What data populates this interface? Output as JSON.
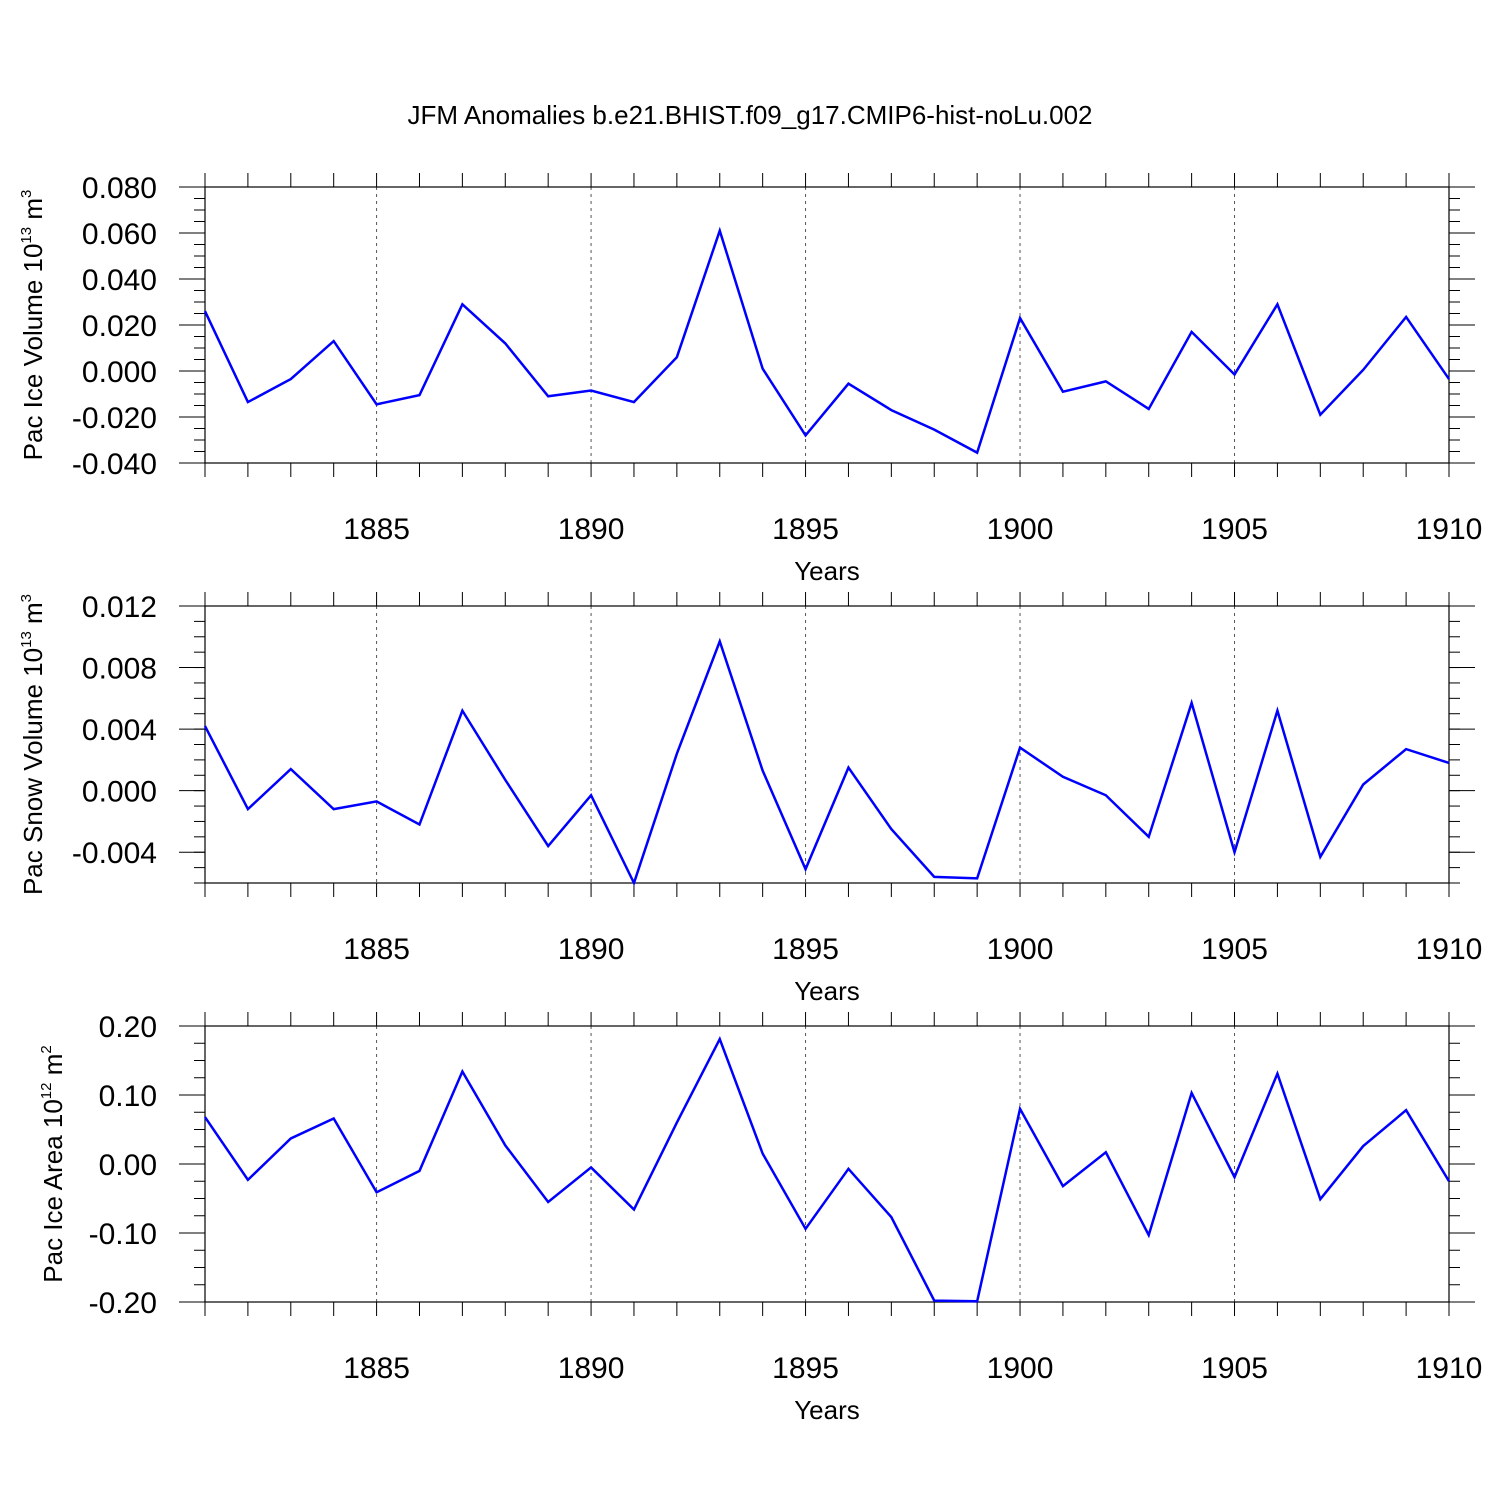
{
  "figure": {
    "title": "JFM Anomalies b.e21.BHIST.f09_g17.CMIP6-hist-noLu.002"
  },
  "chart_data": [
    {
      "type": "line",
      "title": "JFM Anomalies b.e21.BHIST.f09_g17.CMIP6-hist-noLu.002",
      "xlabel": "Years",
      "ylabel": {
        "prefix": "Pac Ice Volume 10",
        "exp": "13",
        "unit": " m",
        "unit_exp": "3"
      },
      "xlim": [
        1881,
        1910
      ],
      "ylim": [
        -0.04,
        0.08
      ],
      "xticks": [
        1885,
        1890,
        1895,
        1900,
        1905,
        1910
      ],
      "xtick_labels": [
        "1885",
        "1890",
        "1895",
        "1900",
        "1905",
        "1910"
      ],
      "yticks": [
        -0.04,
        -0.02,
        0.0,
        0.02,
        0.04,
        0.06,
        0.08
      ],
      "ytick_labels": [
        "-0.040",
        "-0.020",
        "0.000",
        "0.020",
        "0.040",
        "0.060",
        "0.080"
      ],
      "y_minor_step": 0.005,
      "grid": "vertical-dashed",
      "line_color": "#0000ff",
      "series": [
        {
          "name": "Pac Ice Volume",
          "x": [
            1881,
            1882,
            1883,
            1884,
            1885,
            1886,
            1887,
            1888,
            1889,
            1890,
            1891,
            1892,
            1893,
            1894,
            1895,
            1896,
            1897,
            1898,
            1899,
            1900,
            1901,
            1902,
            1903,
            1904,
            1905,
            1906,
            1907,
            1908,
            1909,
            1910
          ],
          "values": [
            0.026,
            -0.0135,
            -0.0035,
            0.013,
            -0.0145,
            -0.0105,
            0.029,
            0.012,
            -0.011,
            -0.0085,
            -0.0135,
            0.006,
            0.061,
            0.001,
            -0.028,
            -0.0055,
            -0.017,
            -0.0255,
            -0.0355,
            0.023,
            -0.009,
            -0.0045,
            -0.0165,
            0.017,
            -0.0015,
            0.029,
            -0.019,
            0.0005,
            0.0235,
            -0.0035
          ]
        }
      ]
    },
    {
      "type": "line",
      "xlabel": "Years",
      "ylabel": {
        "prefix": "Pac Snow Volume 10",
        "exp": "13",
        "unit": " m",
        "unit_exp": "3"
      },
      "xlim": [
        1881,
        1910
      ],
      "ylim": [
        -0.006,
        0.012
      ],
      "xticks": [
        1885,
        1890,
        1895,
        1900,
        1905,
        1910
      ],
      "xtick_labels": [
        "1885",
        "1890",
        "1895",
        "1900",
        "1905",
        "1910"
      ],
      "yticks": [
        -0.004,
        0.0,
        0.004,
        0.008,
        0.012
      ],
      "ytick_labels": [
        "-0.004",
        "0.000",
        "0.004",
        "0.008",
        "0.012"
      ],
      "y_minor_step": 0.001,
      "grid": "vertical-dashed",
      "line_color": "#0000ff",
      "series": [
        {
          "name": "Pac Snow Volume",
          "x": [
            1881,
            1882,
            1883,
            1884,
            1885,
            1886,
            1887,
            1888,
            1889,
            1890,
            1891,
            1892,
            1893,
            1894,
            1895,
            1896,
            1897,
            1898,
            1899,
            1900,
            1901,
            1902,
            1903,
            1904,
            1905,
            1906,
            1907,
            1908,
            1909,
            1910
          ],
          "values": [
            0.0042,
            -0.0012,
            0.0014,
            -0.0012,
            -0.0007,
            -0.0022,
            0.0052,
            0.0007,
            -0.0036,
            -0.0003,
            -0.006,
            0.0024,
            0.0097,
            0.0013,
            -0.0051,
            0.0015,
            -0.0025,
            -0.0056,
            -0.0057,
            0.0028,
            0.0009,
            -0.0003,
            -0.003,
            0.0057,
            -0.004,
            0.0052,
            -0.0043,
            0.0004,
            0.0027,
            0.0018
          ]
        }
      ]
    },
    {
      "type": "line",
      "xlabel": "Years",
      "ylabel": {
        "prefix": "Pac Ice Area 10",
        "exp": "12",
        "unit": " m",
        "unit_exp": "2"
      },
      "xlim": [
        1881,
        1910
      ],
      "ylim": [
        -0.2,
        0.2
      ],
      "xticks": [
        1885,
        1890,
        1895,
        1900,
        1905,
        1910
      ],
      "xtick_labels": [
        "1885",
        "1890",
        "1895",
        "1900",
        "1905",
        "1910"
      ],
      "yticks": [
        -0.2,
        -0.1,
        0.0,
        0.1,
        0.2
      ],
      "ytick_labels": [
        "-0.20",
        "-0.10",
        "0.00",
        "0.10",
        "0.20"
      ],
      "y_minor_step": 0.025,
      "grid": "vertical-dashed",
      "line_color": "#0000ff",
      "series": [
        {
          "name": "Pac Ice Area",
          "x": [
            1881,
            1882,
            1883,
            1884,
            1885,
            1886,
            1887,
            1888,
            1889,
            1890,
            1891,
            1892,
            1893,
            1894,
            1895,
            1896,
            1897,
            1898,
            1899,
            1900,
            1901,
            1902,
            1903,
            1904,
            1905,
            1906,
            1907,
            1908,
            1909,
            1910
          ],
          "values": [
            0.068,
            -0.023,
            0.037,
            0.066,
            -0.041,
            -0.01,
            0.134,
            0.027,
            -0.055,
            -0.005,
            -0.066,
            0.06,
            0.181,
            0.015,
            -0.094,
            -0.007,
            -0.077,
            -0.198,
            -0.199,
            0.08,
            -0.032,
            0.017,
            -0.103,
            0.103,
            -0.019,
            0.131,
            -0.051,
            0.026,
            0.078,
            -0.025
          ]
        }
      ]
    }
  ]
}
